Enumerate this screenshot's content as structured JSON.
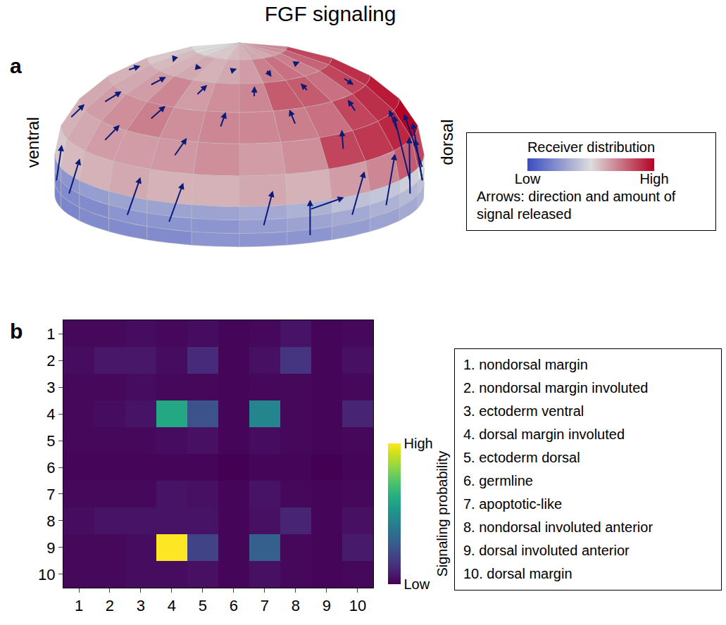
{
  "title": "FGF signaling",
  "chart_data": [
    {
      "panel": "a",
      "type": "hemisphere",
      "side_labels": {
        "left": "ventral",
        "right": "dorsal"
      },
      "receiver": {
        "title": "Receiver distribution",
        "range": [
          0,
          1
        ],
        "ticks": [
          {
            "value": 0,
            "label": "Low"
          },
          {
            "value": 1,
            "label": "High"
          }
        ],
        "values": [
          [
            0.5,
            0.5,
            0.52,
            0.55,
            0.55,
            0.58,
            0.6,
            0.62,
            0.62,
            0.65,
            0.68,
            0.7
          ],
          [
            0.55,
            0.58,
            0.6,
            0.62,
            0.6,
            0.62,
            0.65,
            0.72,
            0.75,
            0.72,
            0.78,
            0.85
          ],
          [
            0.6,
            0.62,
            0.65,
            0.7,
            0.65,
            0.68,
            0.7,
            0.8,
            0.8,
            0.75,
            0.85,
            0.9
          ],
          [
            0.62,
            0.65,
            0.68,
            0.72,
            0.68,
            0.7,
            0.7,
            0.72,
            0.75,
            0.85,
            0.9,
            0.95
          ],
          [
            0.6,
            0.62,
            0.65,
            0.65,
            0.66,
            0.68,
            0.65,
            0.68,
            0.85,
            0.88,
            0.92,
            1.0
          ],
          [
            0.55,
            0.58,
            0.6,
            0.62,
            0.6,
            0.6,
            0.62,
            0.6,
            0.65,
            0.7,
            0.8,
            0.85
          ],
          [
            0.25,
            0.25,
            0.28,
            0.3,
            0.3,
            0.3,
            0.32,
            0.35,
            0.4,
            0.42,
            0.45,
            0.5
          ],
          [
            0.2,
            0.22,
            0.22,
            0.25,
            0.25,
            0.25,
            0.28,
            0.3,
            0.32,
            0.35,
            0.38,
            0.4
          ],
          [
            0.2,
            0.2,
            0.22,
            0.22,
            0.22,
            0.25,
            0.25,
            0.25,
            0.28,
            0.3,
            0.32,
            0.35
          ]
        ]
      },
      "arrows": {
        "note": "Arrows: direction and amount of signal released",
        "items": [
          [
            7,
            0,
            -2.2,
            0.3
          ],
          [
            7,
            1,
            -2.2,
            0.4
          ],
          [
            7,
            3,
            -2.2,
            0.3
          ],
          [
            7,
            4,
            -2.2,
            0.3
          ],
          [
            7,
            6,
            -2.0,
            0.2
          ],
          [
            7,
            8,
            -2.2,
            0.4
          ],
          [
            7,
            9,
            -2.4,
            0.5
          ],
          [
            7,
            10,
            -2.6,
            0.4
          ],
          [
            7,
            11,
            -2.8,
            0.1
          ],
          [
            6,
            11,
            -2.2,
            -0.1
          ],
          [
            7,
            11,
            -2.4,
            -0.3
          ],
          [
            6,
            10,
            -2.4,
            0.3
          ],
          [
            8,
            7,
            -2.6,
            0.0
          ],
          [
            6,
            7,
            -0.5,
            0.8
          ],
          [
            0,
            2,
            0,
            0.25
          ],
          [
            0,
            4,
            0,
            0.25
          ],
          [
            0,
            6,
            0,
            0.25
          ],
          [
            0,
            8,
            0,
            0.3
          ],
          [
            0,
            10,
            0,
            0.3
          ],
          [
            1,
            1,
            0.1,
            0.35
          ],
          [
            1,
            3,
            0,
            0.35
          ],
          [
            1,
            5,
            -0.1,
            0.35
          ],
          [
            1,
            7,
            0.3,
            0
          ],
          [
            1,
            9,
            0,
            0.4
          ],
          [
            2,
            0,
            -0.3,
            0.2
          ],
          [
            2,
            2,
            -0.4,
            0.2
          ],
          [
            2,
            4,
            -0.4,
            0.2
          ],
          [
            2,
            6,
            -0.4,
            0.1
          ],
          [
            2,
            8,
            -0.3,
            0
          ],
          [
            2,
            10,
            0.3,
            0
          ],
          [
            3,
            1,
            -0.5,
            0.2
          ],
          [
            3,
            3,
            -0.5,
            0.2
          ],
          [
            3,
            5,
            -0.5,
            0.1
          ],
          [
            3,
            7,
            -0.5,
            0
          ],
          [
            3,
            9,
            -0.4,
            0.1
          ],
          [
            4,
            0,
            -0.6,
            0.2
          ],
          [
            4,
            2,
            -0.6,
            0.2
          ],
          [
            4,
            4,
            -0.6,
            0.2
          ],
          [
            4,
            8,
            -0.6,
            0.2
          ],
          [
            4,
            10,
            -0.6,
            0.3
          ]
        ]
      }
    },
    {
      "panel": "b",
      "type": "heatmap",
      "x": [
        1,
        2,
        3,
        4,
        5,
        6,
        7,
        8,
        9,
        10
      ],
      "y": [
        1,
        2,
        3,
        4,
        5,
        6,
        7,
        8,
        9,
        10
      ],
      "xlim": [
        0.5,
        10.5
      ],
      "ylim": [
        10.5,
        0.5
      ],
      "xticks": [
        1,
        2,
        3,
        4,
        5,
        6,
        7,
        8,
        9,
        10
      ],
      "yticks": [
        1,
        2,
        3,
        4,
        5,
        6,
        7,
        8,
        9,
        10
      ],
      "z": [
        [
          0.02,
          0.02,
          0.03,
          0.02,
          0.03,
          0.01,
          0.02,
          0.05,
          0.01,
          0.02
        ],
        [
          0.03,
          0.06,
          0.06,
          0.03,
          0.12,
          0.01,
          0.04,
          0.15,
          0.01,
          0.04
        ],
        [
          0.02,
          0.02,
          0.03,
          0.02,
          0.02,
          0.01,
          0.02,
          0.02,
          0.01,
          0.02
        ],
        [
          0.02,
          0.03,
          0.05,
          0.6,
          0.25,
          0.01,
          0.45,
          0.02,
          0.01,
          0.1
        ],
        [
          0.02,
          0.02,
          0.02,
          0.03,
          0.04,
          0.01,
          0.03,
          0.02,
          0.01,
          0.02
        ],
        [
          0.01,
          0.01,
          0.01,
          0.01,
          0.01,
          0.0,
          0.01,
          0.01,
          0.0,
          0.01
        ],
        [
          0.02,
          0.02,
          0.02,
          0.05,
          0.04,
          0.01,
          0.05,
          0.02,
          0.01,
          0.02
        ],
        [
          0.03,
          0.05,
          0.05,
          0.05,
          0.05,
          0.01,
          0.04,
          0.1,
          0.01,
          0.04
        ],
        [
          0.02,
          0.02,
          0.03,
          1.0,
          0.2,
          0.01,
          0.3,
          0.02,
          0.01,
          0.07
        ],
        [
          0.02,
          0.02,
          0.03,
          0.03,
          0.04,
          0.01,
          0.04,
          0.02,
          0.01,
          0.02
        ]
      ],
      "colorbar": {
        "title": "Signaling probability",
        "range": [
          0,
          1
        ],
        "ticks": [
          {
            "value": 0,
            "label": "Low"
          },
          {
            "value": 1,
            "label": "High"
          }
        ]
      },
      "cell_types": [
        "1. nondorsal margin",
        "2. nondorsal margin involuted",
        "3. ectoderm ventral",
        "4. dorsal margin involuted",
        "5. ectoderm dorsal",
        "6. germline",
        "7. apoptotic-like",
        "8. nondorsal involuted anterior",
        "9. dorsal involuted anterior",
        "10. dorsal margin"
      ]
    }
  ]
}
